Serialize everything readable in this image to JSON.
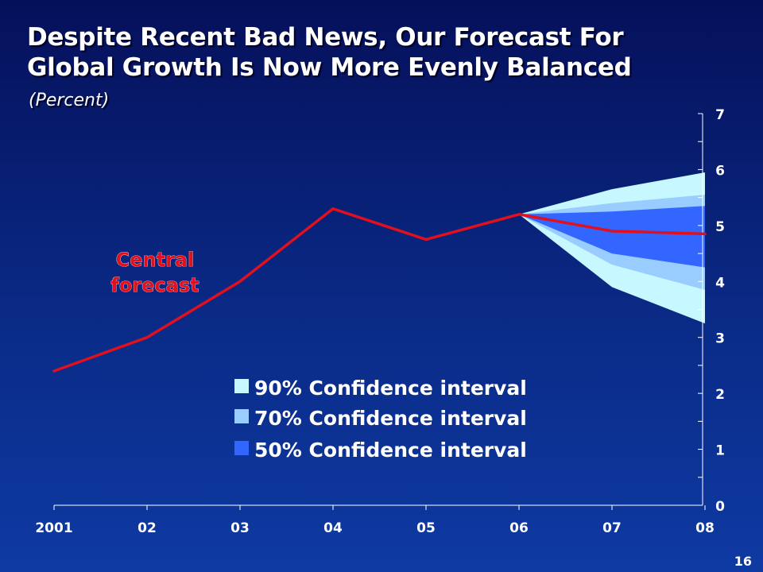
{
  "slide": {
    "title_line1": "Despite Recent Bad News, Our Forecast For",
    "title_line2": "Global Growth Is Now More Evenly Balanced",
    "subtitle": "(Percent)",
    "page_number": "16"
  },
  "colors": {
    "central": "#e0101e",
    "ci90": "#c8f8ff",
    "ci70": "#99ccff",
    "ci50": "#3366ff",
    "axis": "#ffffff"
  },
  "chart_data": {
    "type": "line",
    "title": "Despite Recent Bad News, Our Forecast For Global Growth Is Now More Evenly Balanced",
    "ylabel": "(Percent)",
    "xlabel": "",
    "x": [
      "2001",
      "02",
      "03",
      "04",
      "05",
      "06",
      "07",
      "08"
    ],
    "ylim": [
      0,
      7
    ],
    "yticks": [
      0,
      1,
      2,
      3,
      4,
      5,
      6,
      7
    ],
    "y_axis_side": "right",
    "grid": false,
    "series": [
      {
        "name": "Central forecast",
        "values": [
          2.4,
          3.0,
          4.0,
          5.3,
          4.75,
          5.2,
          4.9,
          4.85
        ]
      }
    ],
    "confidence_bands": [
      {
        "name": "90% Confidence interval",
        "x": [
          "06",
          "07",
          "08"
        ],
        "lower": [
          5.2,
          3.9,
          3.25
        ],
        "upper": [
          5.2,
          5.65,
          5.95
        ]
      },
      {
        "name": "70% Confidence interval",
        "x": [
          "06",
          "07",
          "08"
        ],
        "lower": [
          5.2,
          4.3,
          3.85
        ],
        "upper": [
          5.2,
          5.4,
          5.55
        ]
      },
      {
        "name": "50% Confidence interval",
        "x": [
          "06",
          "07",
          "08"
        ],
        "lower": [
          5.2,
          4.5,
          4.25
        ],
        "upper": [
          5.2,
          5.25,
          5.35
        ]
      }
    ],
    "annotation": {
      "line1": "Central",
      "line2": "forecast"
    },
    "legend": {
      "placement": "bottom-center",
      "entries": [
        "90% Confidence interval",
        "70% Confidence interval",
        "50% Confidence interval"
      ]
    }
  }
}
